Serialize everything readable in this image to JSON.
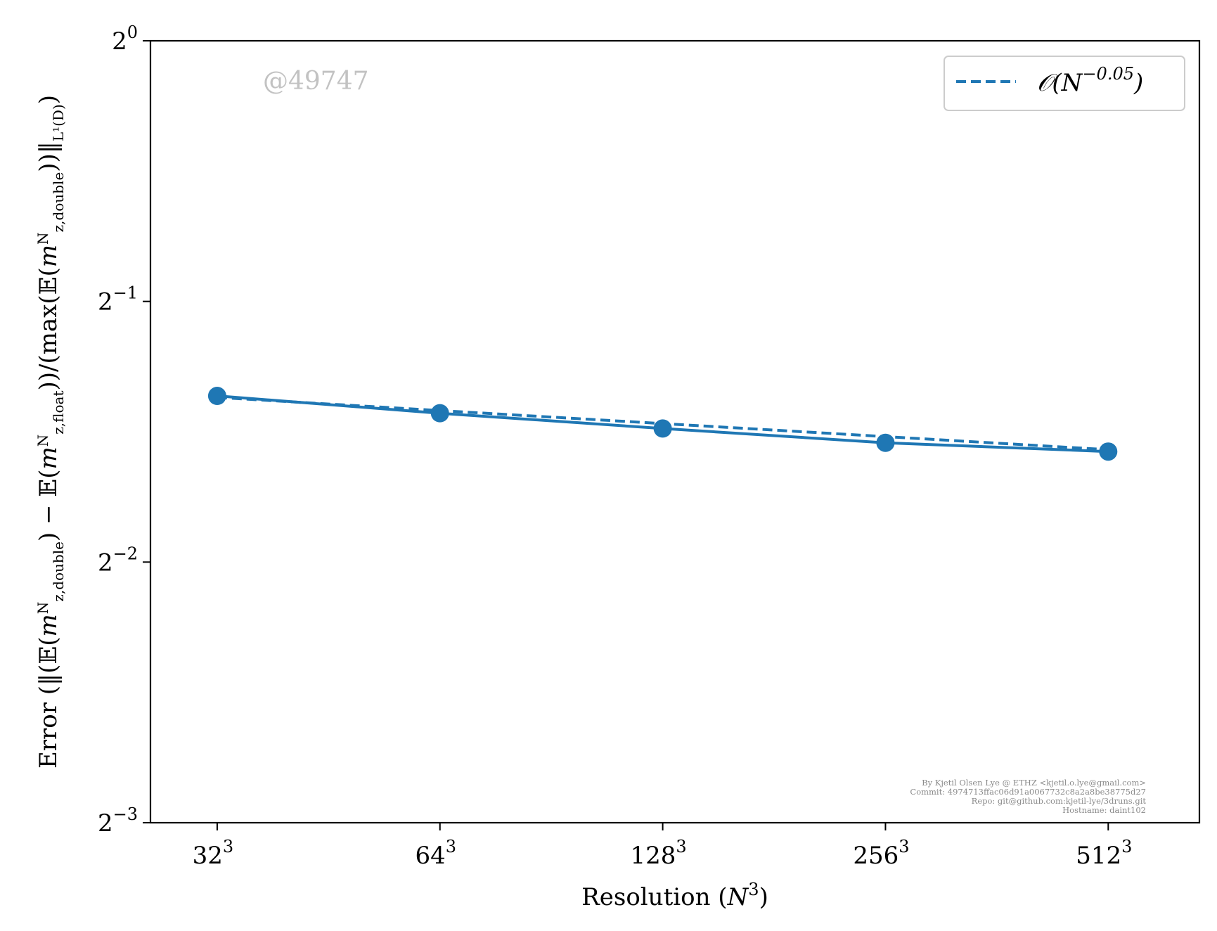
{
  "chart_data": {
    "type": "line",
    "x_scale": "log2",
    "y_scale": "log2",
    "x": [
      32,
      64,
      128,
      256,
      512
    ],
    "xlim": [
      26,
      680
    ],
    "ylim": [
      0.125,
      1.0
    ],
    "x_ticks": [
      {
        "base": "32",
        "sup": "3"
      },
      {
        "base": "64",
        "sup": "3"
      },
      {
        "base": "128",
        "sup": "3"
      },
      {
        "base": "256",
        "sup": "3"
      },
      {
        "base": "512",
        "sup": "3"
      }
    ],
    "y_ticks": [
      {
        "value": 1.0,
        "base": "2",
        "sup": "0"
      },
      {
        "value": 0.5,
        "base": "2",
        "sup": "−1"
      },
      {
        "value": 0.25,
        "base": "2",
        "sup": "−2"
      },
      {
        "value": 0.125,
        "base": "2",
        "sup": "−3"
      }
    ],
    "xlabel": "Resolution (N³)",
    "ylabel": "Error (‖(𝔼(m^N_{z,double}) − 𝔼(m^N_{z,float}))/(max(𝔼(m^N_{z,double}))‖_{L¹(D)})",
    "series": [
      {
        "values": [
          0.3889,
          0.3714,
          0.3566,
          0.3433,
          0.3354
        ],
        "style": "solid",
        "marker": "circle",
        "color": "#1f77b4"
      },
      {
        "name": "𝒪(N^{−0.05})",
        "values": [
          0.3873,
          0.374,
          0.3613,
          0.349,
          0.3371
        ],
        "style": "dashed",
        "marker": "none",
        "color": "#1f77b4"
      }
    ],
    "legend": {
      "position": "top-right",
      "label_main": "𝒪(N",
      "label_sup": "−0.05",
      "label_tail": ")"
    },
    "grid": false
  },
  "watermark": "@49747",
  "footer": [
    "By Kjetil Olsen Lye @ ETHZ <kjetil.o.lye@gmail.com>",
    "Commit: 4974713ffac06d91a0067732c8a2a8be38775d27",
    "Repo: git@github.com:kjetil-lye/3druns.git",
    "Hostname: daint102"
  ]
}
